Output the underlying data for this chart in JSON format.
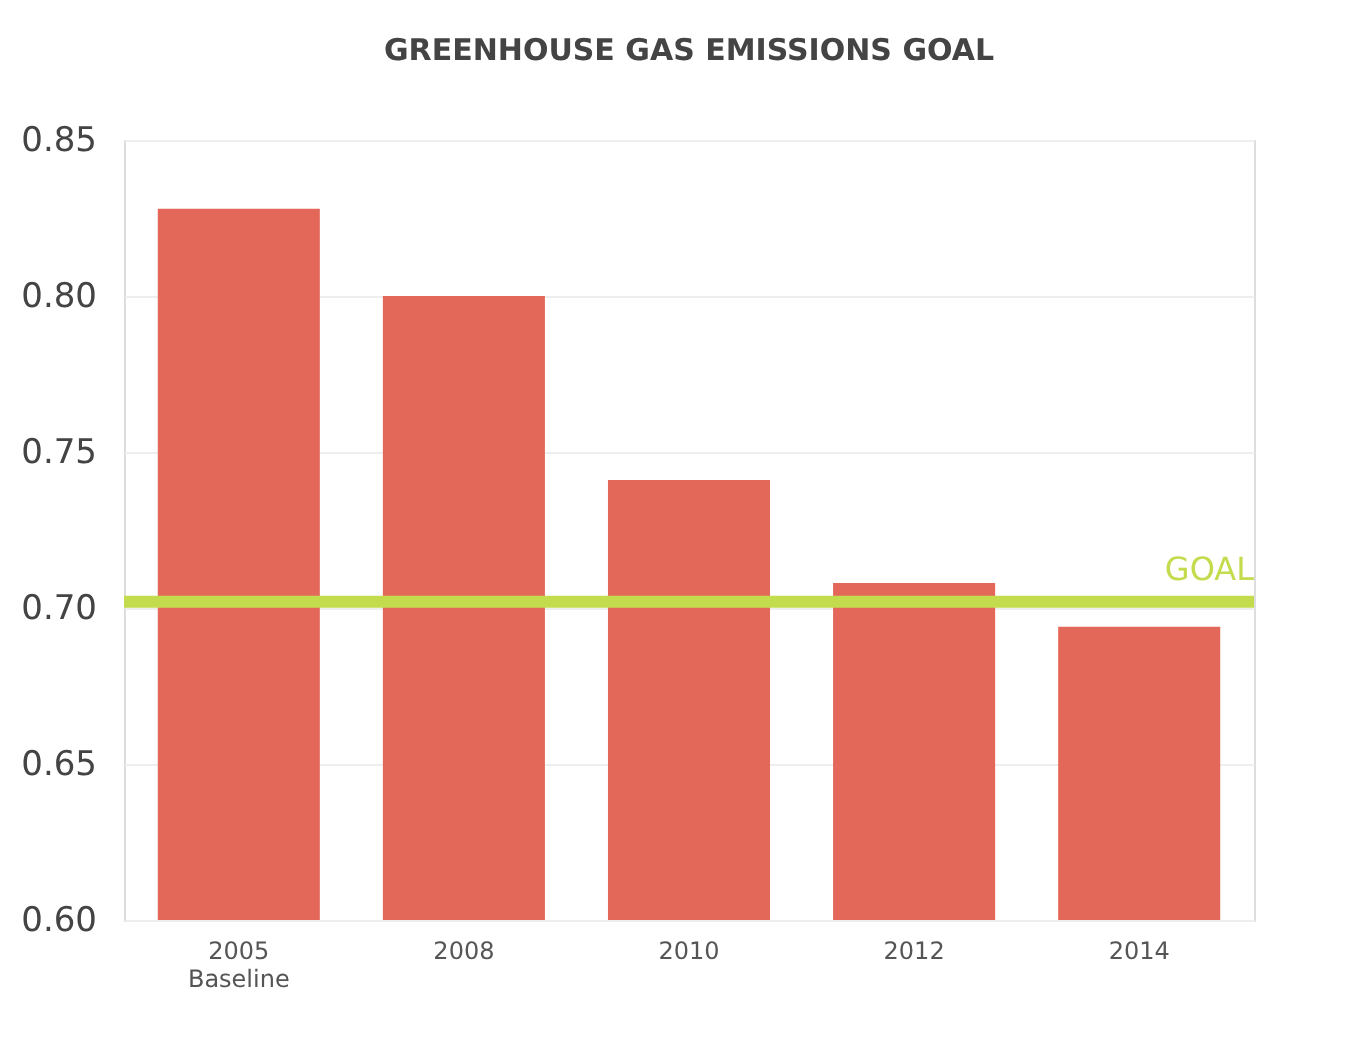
{
  "chart_data": {
    "type": "bar",
    "title": "GREENHOUSE GAS EMISSIONS GOAL",
    "categories": [
      "2005 Baseline",
      "2008",
      "2010",
      "2012",
      "2014"
    ],
    "values": [
      0.828,
      0.8,
      0.741,
      0.708,
      0.694
    ],
    "color": "#e4685a",
    "ylim": [
      0.6,
      0.85
    ],
    "yticks": [
      {
        "value": 0.6,
        "label": "0.60"
      },
      {
        "value": 0.65,
        "label": "0.65"
      },
      {
        "value": 0.7,
        "label": "0.70"
      },
      {
        "value": 0.75,
        "label": "0.75"
      },
      {
        "value": 0.8,
        "label": "0.80"
      },
      {
        "value": 0.85,
        "label": "0.85"
      }
    ],
    "grid": "y",
    "ref_lines": [
      {
        "axis": "y",
        "value": 0.702,
        "label": "GOAL",
        "color": "#c2dc4e"
      }
    ]
  }
}
